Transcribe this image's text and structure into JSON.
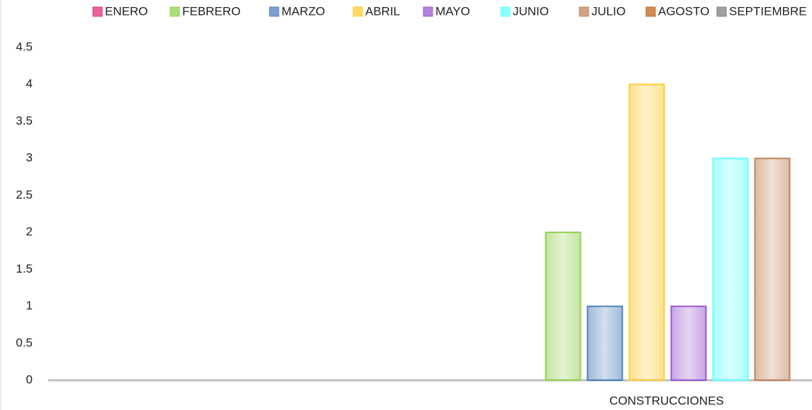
{
  "chart_data": {
    "type": "bar",
    "categories": [
      "CONSTRUCCIONES"
    ],
    "series": [
      {
        "name": "ENERO",
        "color": "#e0307a",
        "values": [
          0
        ]
      },
      {
        "name": "FEBRERO",
        "color": "#92d050",
        "values": [
          2
        ]
      },
      {
        "name": "MARZO",
        "color": "#4f81bd",
        "values": [
          1
        ]
      },
      {
        "name": "ABRIL",
        "color": "#ffcc33",
        "values": [
          4
        ]
      },
      {
        "name": "MAYO",
        "color": "#9b59d0",
        "values": [
          1
        ]
      },
      {
        "name": "JUNIO",
        "color": "#66ffff",
        "values": [
          3
        ]
      },
      {
        "name": "JULIO",
        "color": "#c0835a",
        "values": [
          3
        ]
      },
      {
        "name": "AGOSTO",
        "color": "#c0651e",
        "values": [
          null
        ]
      },
      {
        "name": "SEPTIEMBRE",
        "color": "#808080",
        "values": [
          null
        ]
      }
    ],
    "ylim": [
      0,
      4.5
    ],
    "yticks": [
      0,
      0.5,
      1,
      1.5,
      2,
      2.5,
      3,
      3.5,
      4,
      4.5
    ],
    "grid": false,
    "legend": "top"
  }
}
